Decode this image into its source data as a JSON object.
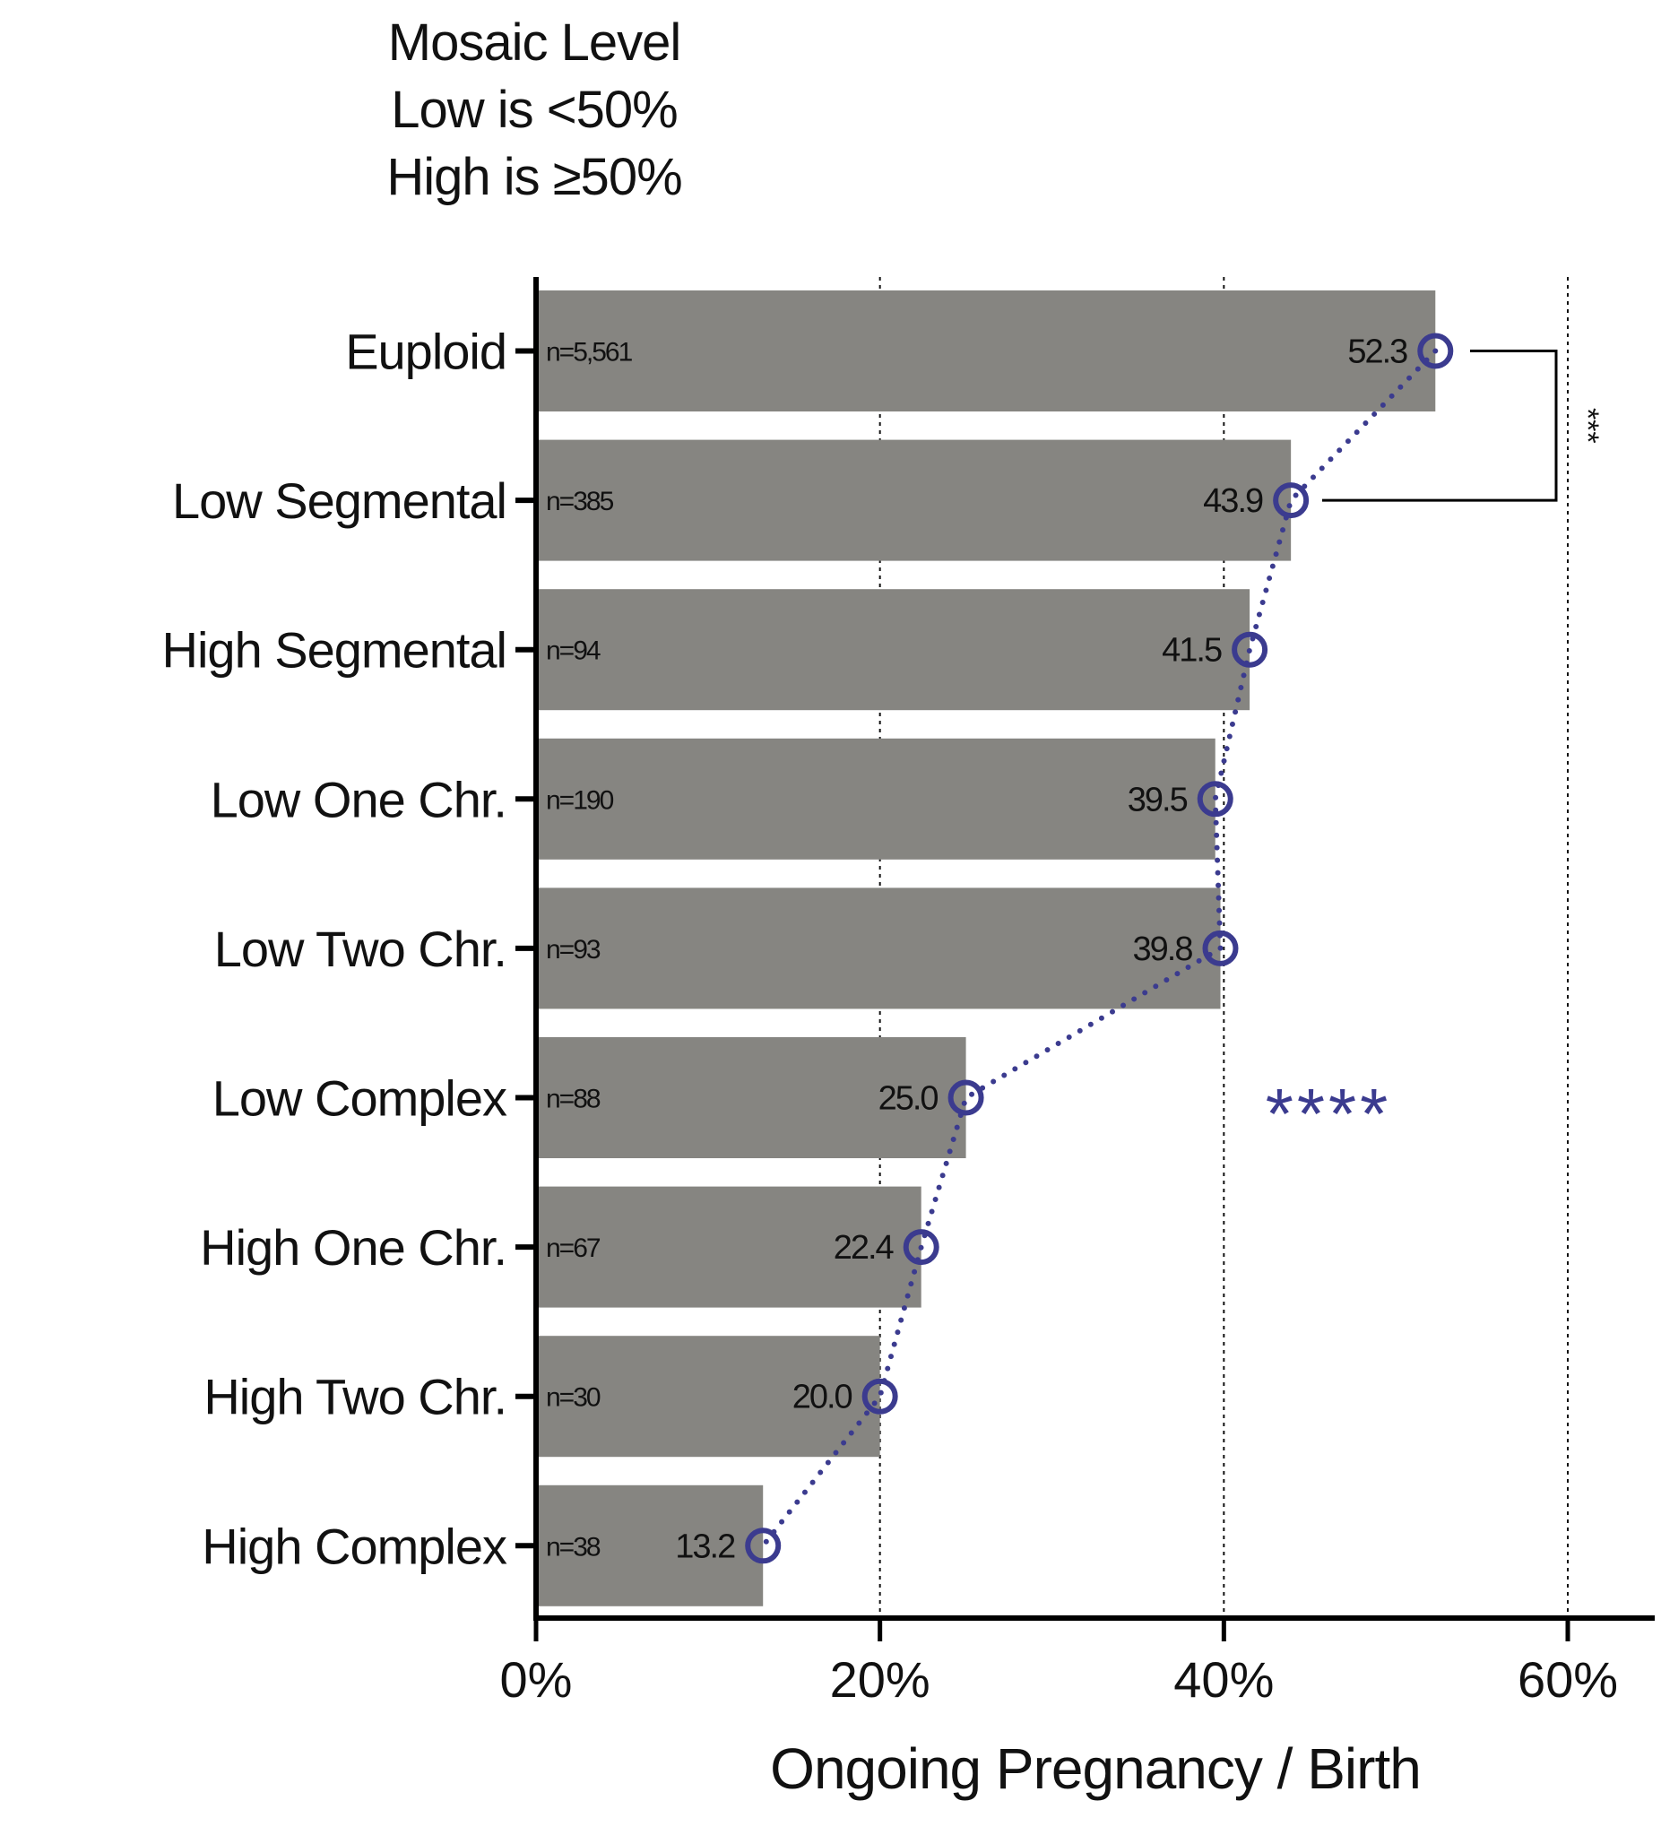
{
  "chart_data": {
    "type": "bar",
    "orientation": "horizontal",
    "title_lines": [
      "Mosaic Level",
      "Low is <50%",
      "High is ≥50%"
    ],
    "xlabel": "Ongoing Pregnancy / Birth",
    "ylabel": "",
    "xlim": [
      0,
      65
    ],
    "xticks": [
      0,
      20,
      40,
      60
    ],
    "xtick_labels": [
      "0%",
      "20%",
      "40%",
      "60%"
    ],
    "grid": "vertical dotted at 20, 40, 60",
    "categories": [
      "Euploid",
      "Low Segmental",
      "High Segmental",
      "Low One Chr.",
      "Low Two Chr.",
      "Low Complex",
      "High One Chr.",
      "High Two Chr.",
      "High Complex"
    ],
    "n_labels": [
      "n=5,561",
      "n=385",
      "n=94",
      "n=190",
      "n=93",
      "n=88",
      "n=67",
      "n=30",
      "n=38"
    ],
    "values": [
      52.3,
      43.9,
      41.5,
      39.5,
      39.8,
      25.0,
      22.4,
      20.0,
      13.2
    ],
    "value_labels": [
      "52.3",
      "43.9",
      "41.5",
      "39.5",
      "39.8",
      "25.0",
      "22.4",
      "20.0",
      "13.2"
    ],
    "annotations": {
      "bracket_label": "***",
      "trend_label": "****"
    },
    "colors": {
      "bar": "#868581",
      "marker": "#3b3b8f",
      "axis": "#000000"
    }
  }
}
